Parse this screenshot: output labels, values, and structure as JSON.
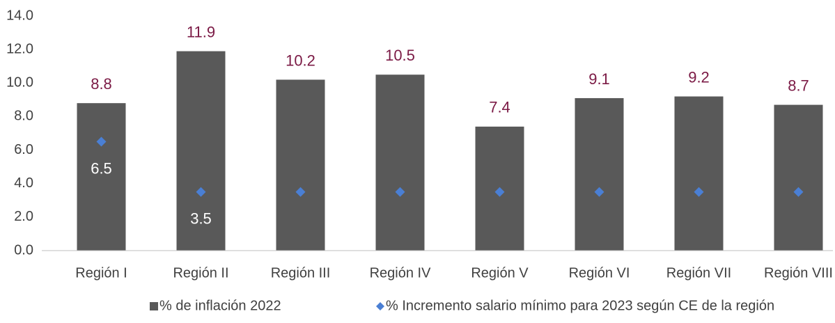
{
  "chart_data": {
    "type": "bar",
    "categories": [
      "Región I",
      "Región II",
      "Región III",
      "Región IV",
      "Región V",
      "Región VI",
      "Región VII",
      "Región VIII"
    ],
    "series": [
      {
        "name": "% de inflación 2022",
        "type": "bar",
        "color": "#595959",
        "label_color": "#7b1a45",
        "values": [
          8.8,
          11.9,
          10.2,
          10.5,
          7.4,
          9.1,
          9.2,
          8.7
        ]
      },
      {
        "name": "% Incremento salario mínimo para 2023 según CE de la región",
        "type": "scatter",
        "color": "#4a7fd4",
        "label_color": "#ffffff",
        "values": [
          6.5,
          3.5,
          3.5,
          3.5,
          3.5,
          3.5,
          3.5,
          3.5
        ],
        "value_labels": [
          "6.5",
          "3.5",
          null,
          null,
          null,
          null,
          null,
          null
        ]
      }
    ],
    "ylim": [
      0,
      14
    ],
    "yticks": [
      {
        "value": 0,
        "label": "0.0"
      },
      {
        "value": 2,
        "label": "2.0"
      },
      {
        "value": 4,
        "label": "4.0"
      },
      {
        "value": 6,
        "label": "6.0"
      },
      {
        "value": 8,
        "label": "8.0"
      },
      {
        "value": 10,
        "label": "10.0"
      },
      {
        "value": 12,
        "label": "12.0"
      },
      {
        "value": 14,
        "label": "14.0"
      }
    ],
    "grid": false,
    "legend": "bottom"
  }
}
